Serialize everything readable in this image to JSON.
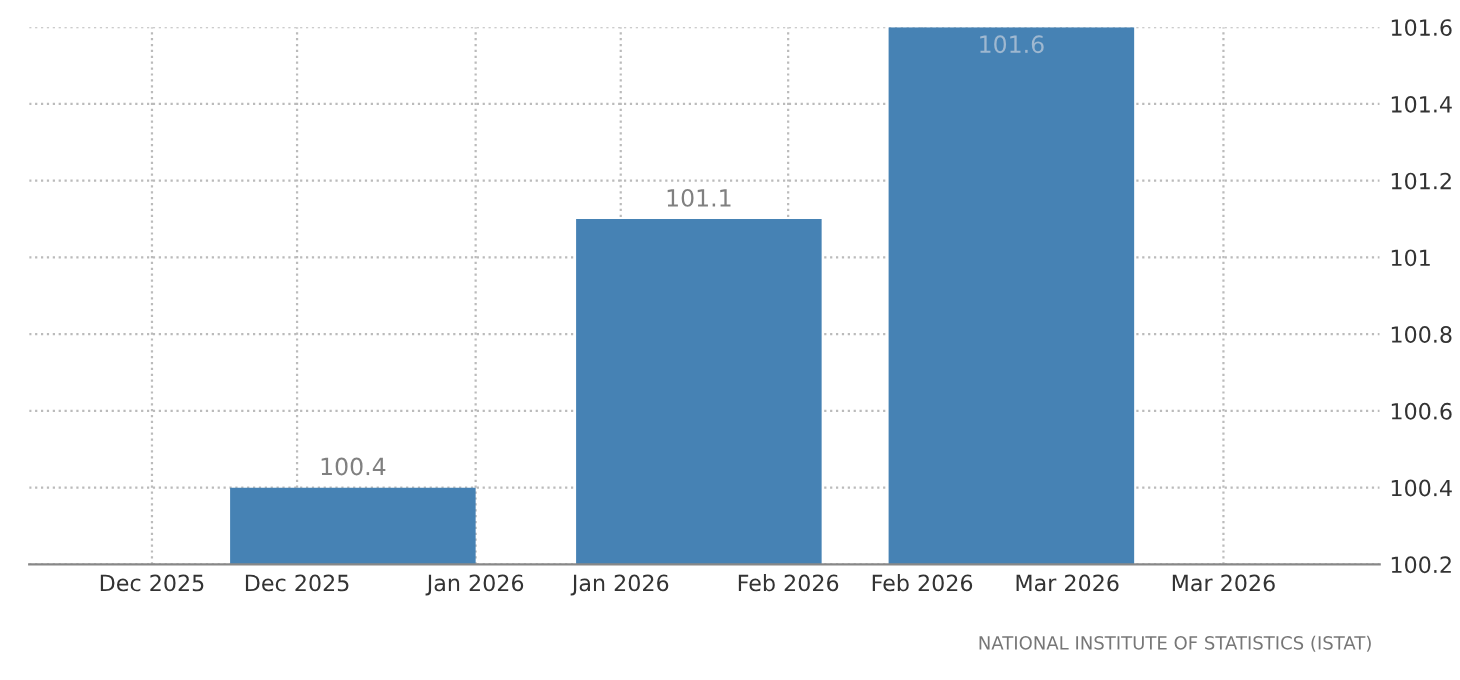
{
  "chart_data": {
    "type": "bar",
    "x": [
      "2025-12-31",
      "2026-01-31",
      "2026-02-28"
    ],
    "values": [
      100.4,
      101.1,
      101.6
    ],
    "color": "#4682b4",
    "data_labels": true,
    "xlim": [
      "2025-12-02",
      "2026-04-02"
    ],
    "xticks": [
      {
        "value": "2025-12-13",
        "label": "Dec 2025"
      },
      {
        "value": "2025-12-26",
        "label": "Dec 2025"
      },
      {
        "value": "2026-01-11",
        "label": "Jan 2026"
      },
      {
        "value": "2026-01-24",
        "label": "Jan 2026"
      },
      {
        "value": "2026-02-08",
        "label": "Feb 2026"
      },
      {
        "value": "2026-02-20",
        "label": "Feb 2026"
      },
      {
        "value": "2026-03-05",
        "label": "Mar 2026"
      },
      {
        "value": "2026-03-19",
        "label": "Mar 2026"
      }
    ],
    "ylim": [
      100.2,
      101.6
    ],
    "yticks": [
      100.2,
      100.4,
      100.6,
      100.8,
      101,
      101.2,
      101.4,
      101.6
    ],
    "grid": true,
    "annotations": [
      "NATIONAL INSTITUTE OF STATISTICS (ISTAT)"
    ]
  }
}
